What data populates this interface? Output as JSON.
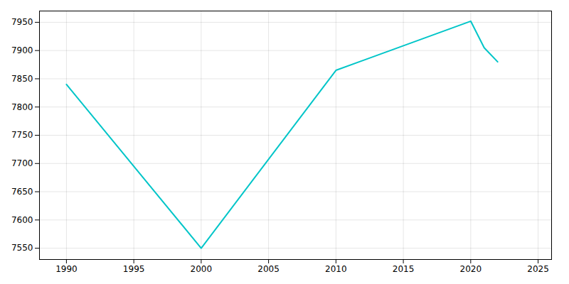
{
  "chart_data": {
    "type": "line",
    "x": [
      1990,
      2000,
      2010,
      2020,
      2021,
      2022
    ],
    "values": [
      7840,
      7550,
      7865,
      7952,
      7905,
      7880
    ],
    "color": "#00C5C8",
    "xlim": [
      1988,
      2026
    ],
    "ylim": [
      7530,
      7970
    ],
    "xticks": [
      1990,
      1995,
      2000,
      2005,
      2010,
      2015,
      2020,
      2025
    ],
    "yticks": [
      7550,
      7600,
      7650,
      7700,
      7750,
      7800,
      7850,
      7900,
      7950
    ],
    "grid": true
  }
}
